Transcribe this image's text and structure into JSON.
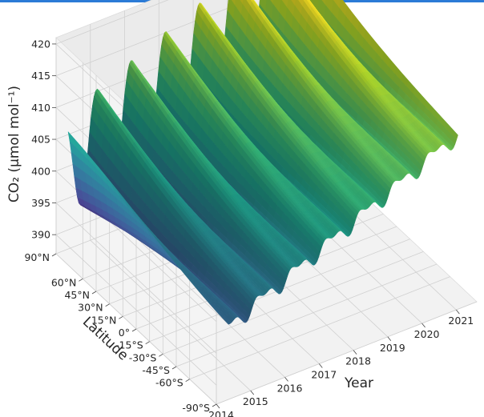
{
  "colors": {
    "top_bar": "#2b7bd6"
  },
  "chart_data": {
    "type": "surface",
    "colormap": "viridis",
    "xlabel": "Year",
    "ylabel": "Latitude",
    "zlabel": "CO₂ (µmol mol⁻¹)",
    "x_ticks": [
      "2014",
      "2015",
      "2016",
      "2017",
      "2018",
      "2019",
      "2020",
      "2021"
    ],
    "y_ticks": [
      "-90°S",
      "-60°S",
      "-45°S",
      "-30°S",
      "-15°S",
      "0°",
      "15°N",
      "30°N",
      "45°N",
      "60°N",
      "90°N"
    ],
    "y_tick_values": [
      -90,
      -60,
      -45,
      -30,
      -15,
      0,
      15,
      30,
      45,
      60,
      90
    ],
    "z_ticks": [
      "390",
      "395",
      "400",
      "405",
      "410",
      "415",
      "420"
    ],
    "z_tick_values": [
      390,
      395,
      400,
      405,
      410,
      415,
      420
    ],
    "xlim": [
      2014,
      2021.6
    ],
    "ylim": [
      -90,
      90
    ],
    "zlim": [
      387,
      421
    ],
    "grid": true,
    "model": {
      "baseline_at_2014": 397.5,
      "growth_per_year": 2.4,
      "north_offset": 2.5,
      "seasonal_amplitude_north": 8.0,
      "seasonal_amplitude_south": 1.0
    }
  }
}
